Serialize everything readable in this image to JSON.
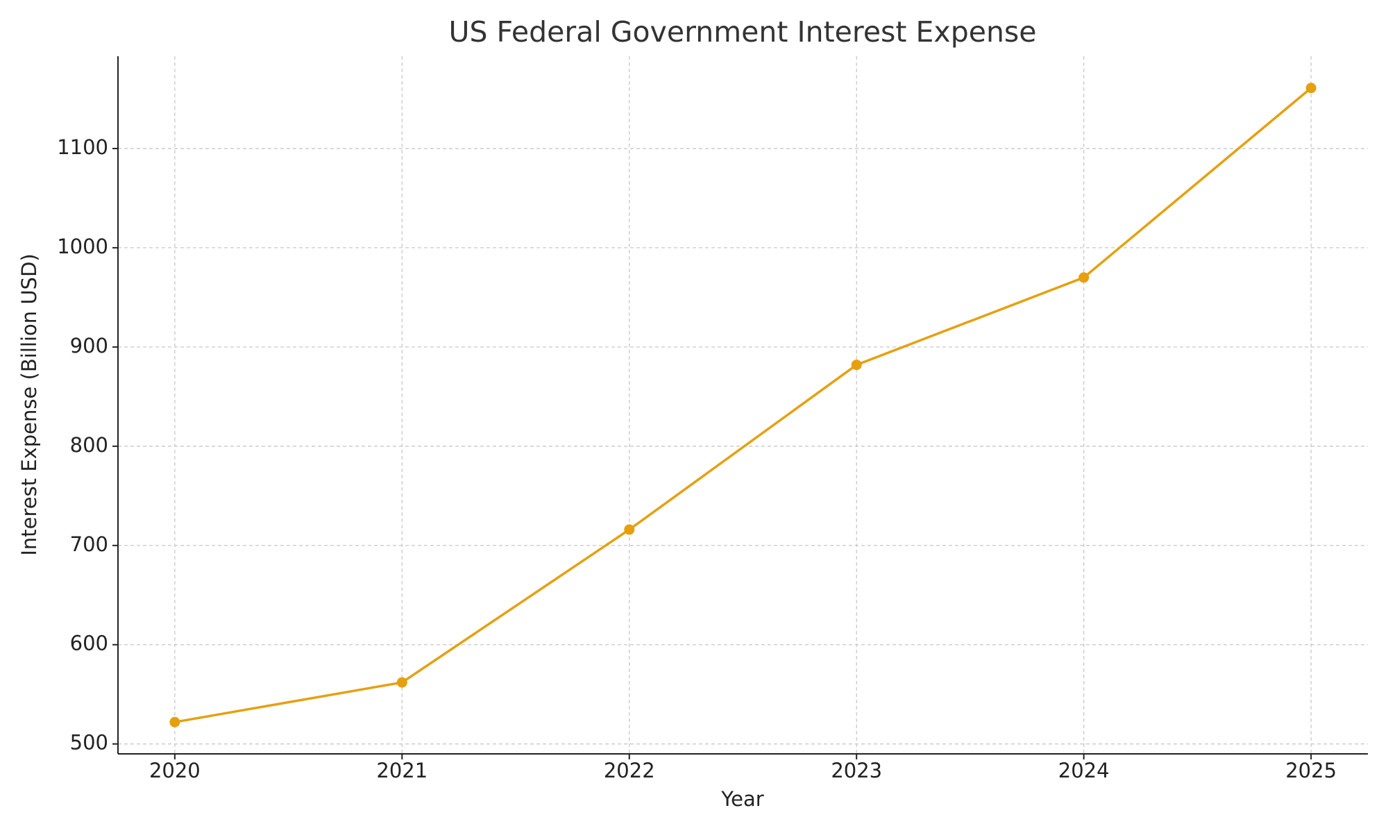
{
  "chart_data": {
    "type": "line",
    "title": "US Federal Government Interest Expense",
    "x_label": "Year",
    "y_label": "Interest Expense (Billion USD)",
    "x": [
      2020,
      2021,
      2022,
      2023,
      2024,
      2025
    ],
    "values": [
      522,
      562,
      716,
      882,
      970,
      1161
    ],
    "color": "#e6a00f",
    "xlim": [
      2019.75,
      2025.25
    ],
    "xticks": [
      2020,
      2021,
      2022,
      2023,
      2024,
      2025
    ],
    "ylim": [
      490,
      1193
    ],
    "yticks": [
      500,
      600,
      700,
      800,
      900,
      1000,
      1100
    ],
    "grid": true
  }
}
